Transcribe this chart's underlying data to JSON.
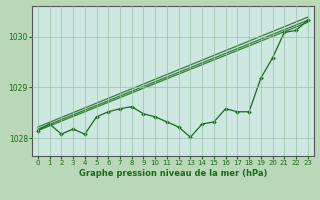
{
  "background_color": "#b8d8b8",
  "plot_bg_color": "#cce8e0",
  "grid_color": "#99c4aa",
  "line_color": "#1a6b1a",
  "xlabel": "Graphe pression niveau de la mer (hPa)",
  "xlim": [
    -0.5,
    23.5
  ],
  "ylim": [
    1027.65,
    1030.6
  ],
  "yticks": [
    1028,
    1029,
    1030
  ],
  "xticks": [
    0,
    1,
    2,
    3,
    4,
    5,
    6,
    7,
    8,
    9,
    10,
    11,
    12,
    13,
    14,
    15,
    16,
    17,
    18,
    19,
    20,
    21,
    22,
    23
  ],
  "straight_lines": [
    [
      [
        0,
        1028.15
      ],
      [
        23,
        1030.28
      ]
    ],
    [
      [
        0,
        1028.18
      ],
      [
        23,
        1030.32
      ]
    ],
    [
      [
        0,
        1028.22
      ],
      [
        23,
        1030.38
      ]
    ]
  ],
  "main_series_x": [
    0,
    1,
    2,
    3,
    4,
    5,
    6,
    7,
    8,
    9,
    10,
    11,
    12,
    13,
    14,
    15,
    16,
    17,
    18,
    19,
    20,
    21,
    22,
    23
  ],
  "main_series_y": [
    1028.15,
    1028.28,
    1028.08,
    1028.18,
    1028.08,
    1028.42,
    1028.52,
    1028.58,
    1028.62,
    1028.48,
    1028.42,
    1028.32,
    1028.22,
    1028.02,
    1028.28,
    1028.32,
    1028.58,
    1028.52,
    1028.52,
    1029.18,
    1029.58,
    1030.08,
    1030.12,
    1030.32
  ]
}
